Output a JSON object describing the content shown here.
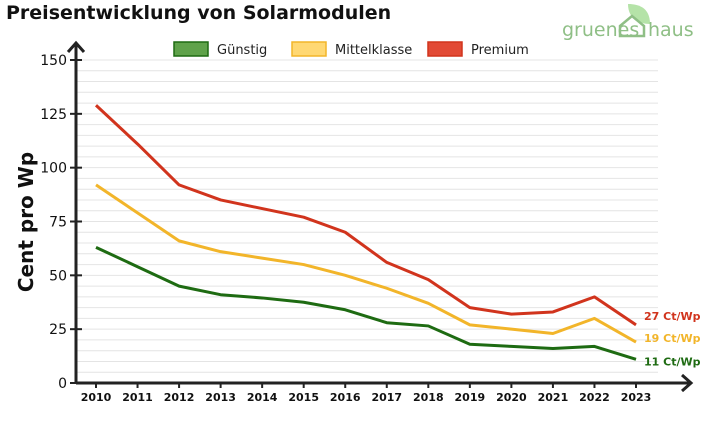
{
  "logo_text": {
    "left": "gruenes",
    "right": "haus"
  },
  "colors": {
    "guenstig": "#1e6b12",
    "mittelklasse": "#f2b52a",
    "premium": "#d1341d",
    "grid": "#e4e4e4",
    "logo": "#8fbf86"
  },
  "chart_data": {
    "type": "line",
    "title": "Preisentwicklung von Solarmodulen",
    "xlabel": "",
    "ylabel": "Cent pro Wp",
    "ylim": [
      0,
      150
    ],
    "yticks": [
      0,
      25,
      50,
      75,
      100,
      125,
      150
    ],
    "grid": true,
    "legend": "top",
    "x": [
      "2010",
      "2011",
      "2012",
      "2013",
      "2014",
      "2015",
      "2016",
      "2017",
      "2018",
      "2019",
      "2020",
      "2021",
      "2022",
      "2023"
    ],
    "series": [
      {
        "name": "Günstig",
        "color": "#1e6b12",
        "fill": "#5fa24a",
        "end_label": "11 Ct/Wp",
        "values": [
          63,
          54,
          45,
          41,
          39.5,
          37.5,
          34,
          28,
          26.5,
          18,
          17,
          16,
          17,
          11
        ]
      },
      {
        "name": "Mittelklasse",
        "color": "#f2b52a",
        "fill": "#ffd873",
        "end_label": "19 Ct/Wp",
        "values": [
          92,
          79,
          66,
          61,
          58,
          55,
          50,
          44,
          37,
          27,
          25,
          23,
          30,
          19
        ]
      },
      {
        "name": "Premium",
        "color": "#d1341d",
        "fill": "#e24a35",
        "end_label": "27 Ct/Wp",
        "values": [
          129,
          111,
          92,
          85,
          81,
          77,
          70,
          56,
          48,
          35,
          32,
          33,
          40,
          27
        ]
      }
    ]
  }
}
